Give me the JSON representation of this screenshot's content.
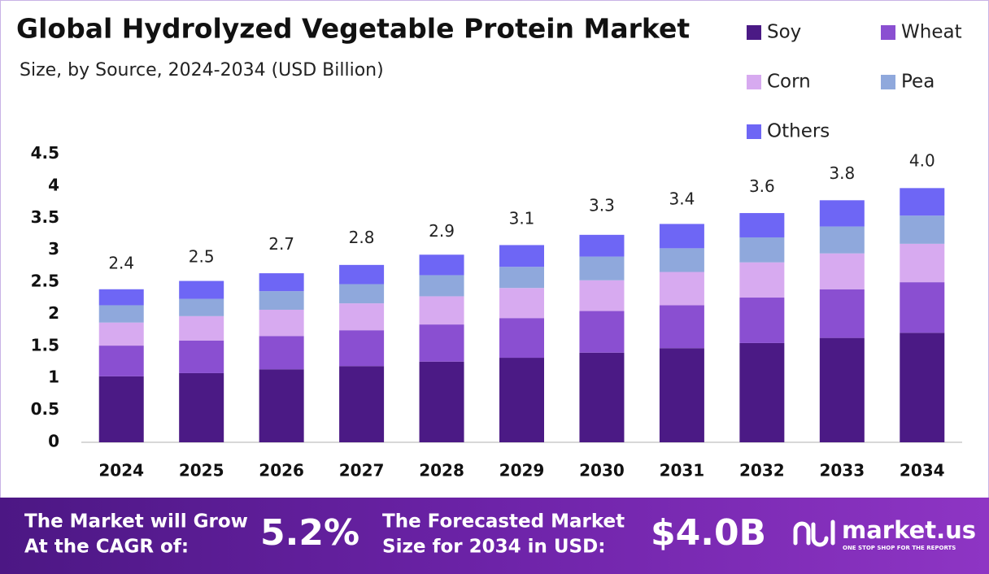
{
  "chart_data": {
    "type": "stacked-bar",
    "title": "Global Hydrolyzed Vegetable Protein Market",
    "subtitle": "Size, by Source, 2024-2034 (USD Billion)",
    "categories": [
      "2024",
      "2025",
      "2026",
      "2027",
      "2028",
      "2029",
      "2030",
      "2031",
      "2032",
      "2033",
      "2034"
    ],
    "series": [
      {
        "name": "Soy",
        "color": "#4b1a85",
        "values": [
          1.03,
          1.08,
          1.14,
          1.19,
          1.26,
          1.32,
          1.4,
          1.47,
          1.55,
          1.63,
          1.71
        ]
      },
      {
        "name": "Wheat",
        "color": "#8a4fd1",
        "values": [
          0.48,
          0.51,
          0.52,
          0.56,
          0.58,
          0.62,
          0.65,
          0.67,
          0.71,
          0.76,
          0.79
        ]
      },
      {
        "name": "Corn",
        "color": "#d7aaf0",
        "values": [
          0.36,
          0.38,
          0.41,
          0.42,
          0.44,
          0.47,
          0.48,
          0.52,
          0.55,
          0.56,
          0.6
        ]
      },
      {
        "name": "Pea",
        "color": "#8fa8dc",
        "values": [
          0.27,
          0.27,
          0.29,
          0.3,
          0.33,
          0.33,
          0.37,
          0.37,
          0.39,
          0.42,
          0.44
        ]
      },
      {
        "name": "Others",
        "color": "#6e66f5",
        "values": [
          0.25,
          0.28,
          0.28,
          0.3,
          0.32,
          0.34,
          0.34,
          0.38,
          0.38,
          0.41,
          0.43
        ]
      }
    ],
    "totals": {
      "values": [
        2.4,
        2.5,
        2.7,
        2.8,
        2.9,
        3.1,
        3.3,
        3.4,
        3.6,
        3.8,
        4.0
      ],
      "value_labels": [
        "2.4",
        "2.5",
        "2.7",
        "2.8",
        "2.9",
        "3.1",
        "3.3",
        "3.4",
        "3.6",
        "3.8",
        "4.0"
      ]
    },
    "ylim": [
      0,
      4.5
    ],
    "yticks": [
      0,
      0.5,
      1,
      1.5,
      2,
      2.5,
      3,
      3.5,
      4,
      4.5
    ],
    "grid": false
  },
  "footer": {
    "cagr_text": [
      "The Market will Grow",
      "At the CAGR of:"
    ],
    "cagr_value": "5.2%",
    "forecast_text": [
      "The Forecasted Market",
      "Size for 2034 in USD:"
    ],
    "forecast_value": "$4.0B",
    "brand": "market.us",
    "tagline": "ONE STOP SHOP FOR THE REPORTS"
  }
}
